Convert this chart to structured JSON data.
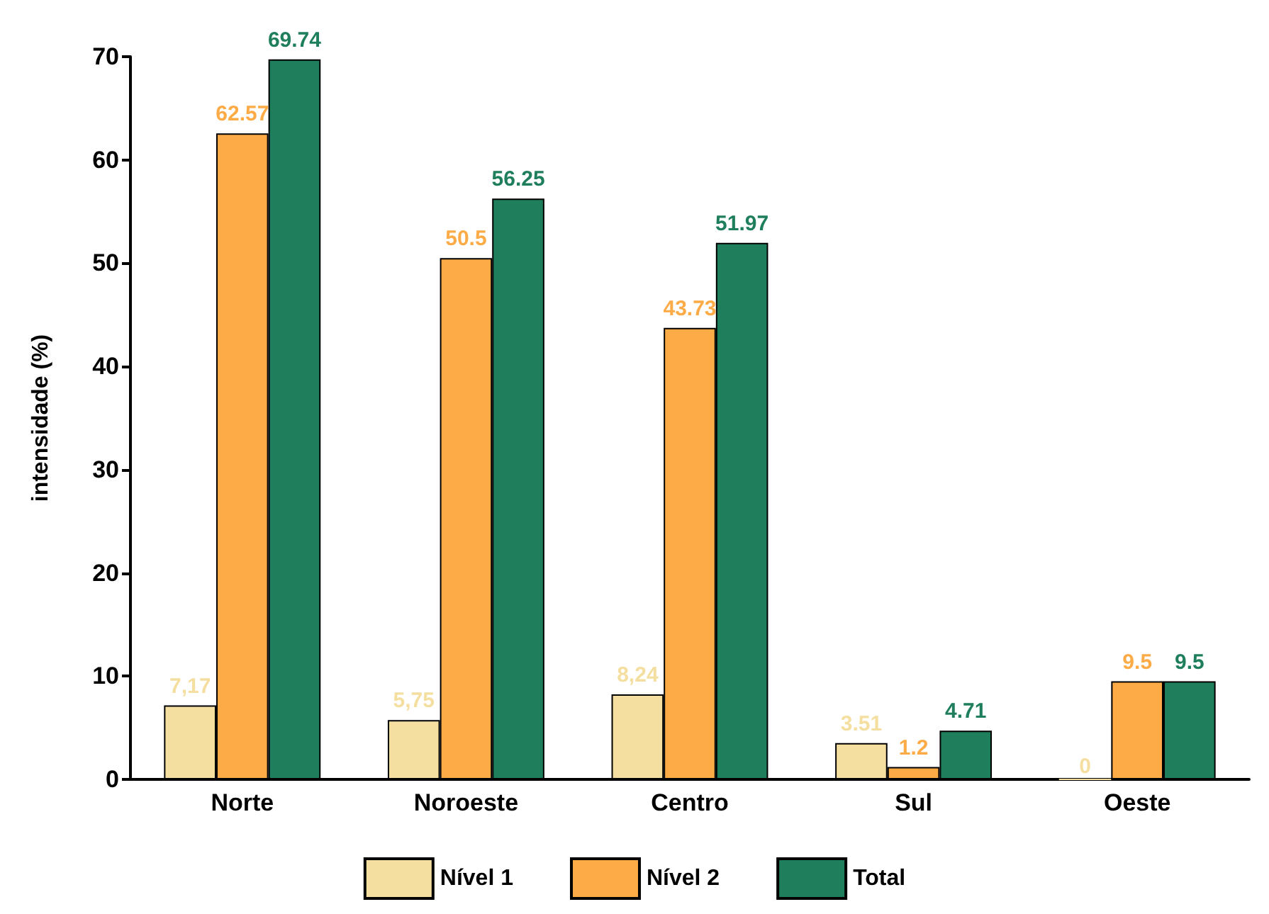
{
  "chart_data": {
    "type": "bar",
    "ylabel": "intensidade (%)",
    "categories": [
      "Norte",
      "Noroeste",
      "Centro",
      "Sul",
      "Oeste"
    ],
    "series": [
      {
        "name": "Nível 1",
        "color": "#f5dfa0",
        "values": [
          7.17,
          5.75,
          8.24,
          3.51,
          0
        ],
        "value_labels": [
          "7,17",
          "5,75",
          "8,24",
          "3.51",
          "0"
        ]
      },
      {
        "name": "Nível 2",
        "color": "#fdab46",
        "values": [
          62.57,
          50.5,
          43.73,
          1.2,
          9.5
        ],
        "value_labels": [
          "62.57",
          "50.5",
          "43.73",
          "1.2",
          "9.5"
        ]
      },
      {
        "name": "Total",
        "color": "#1f7f5c",
        "values": [
          69.74,
          56.25,
          51.97,
          4.71,
          9.5
        ],
        "value_labels": [
          "69.74",
          "56.25",
          "51.97",
          "4.71",
          "9.5"
        ]
      }
    ],
    "ylim": [
      0,
      70
    ],
    "yticks": [
      0,
      10,
      20,
      30,
      40,
      50,
      60,
      70
    ],
    "grid": false,
    "legend": "bottom"
  }
}
